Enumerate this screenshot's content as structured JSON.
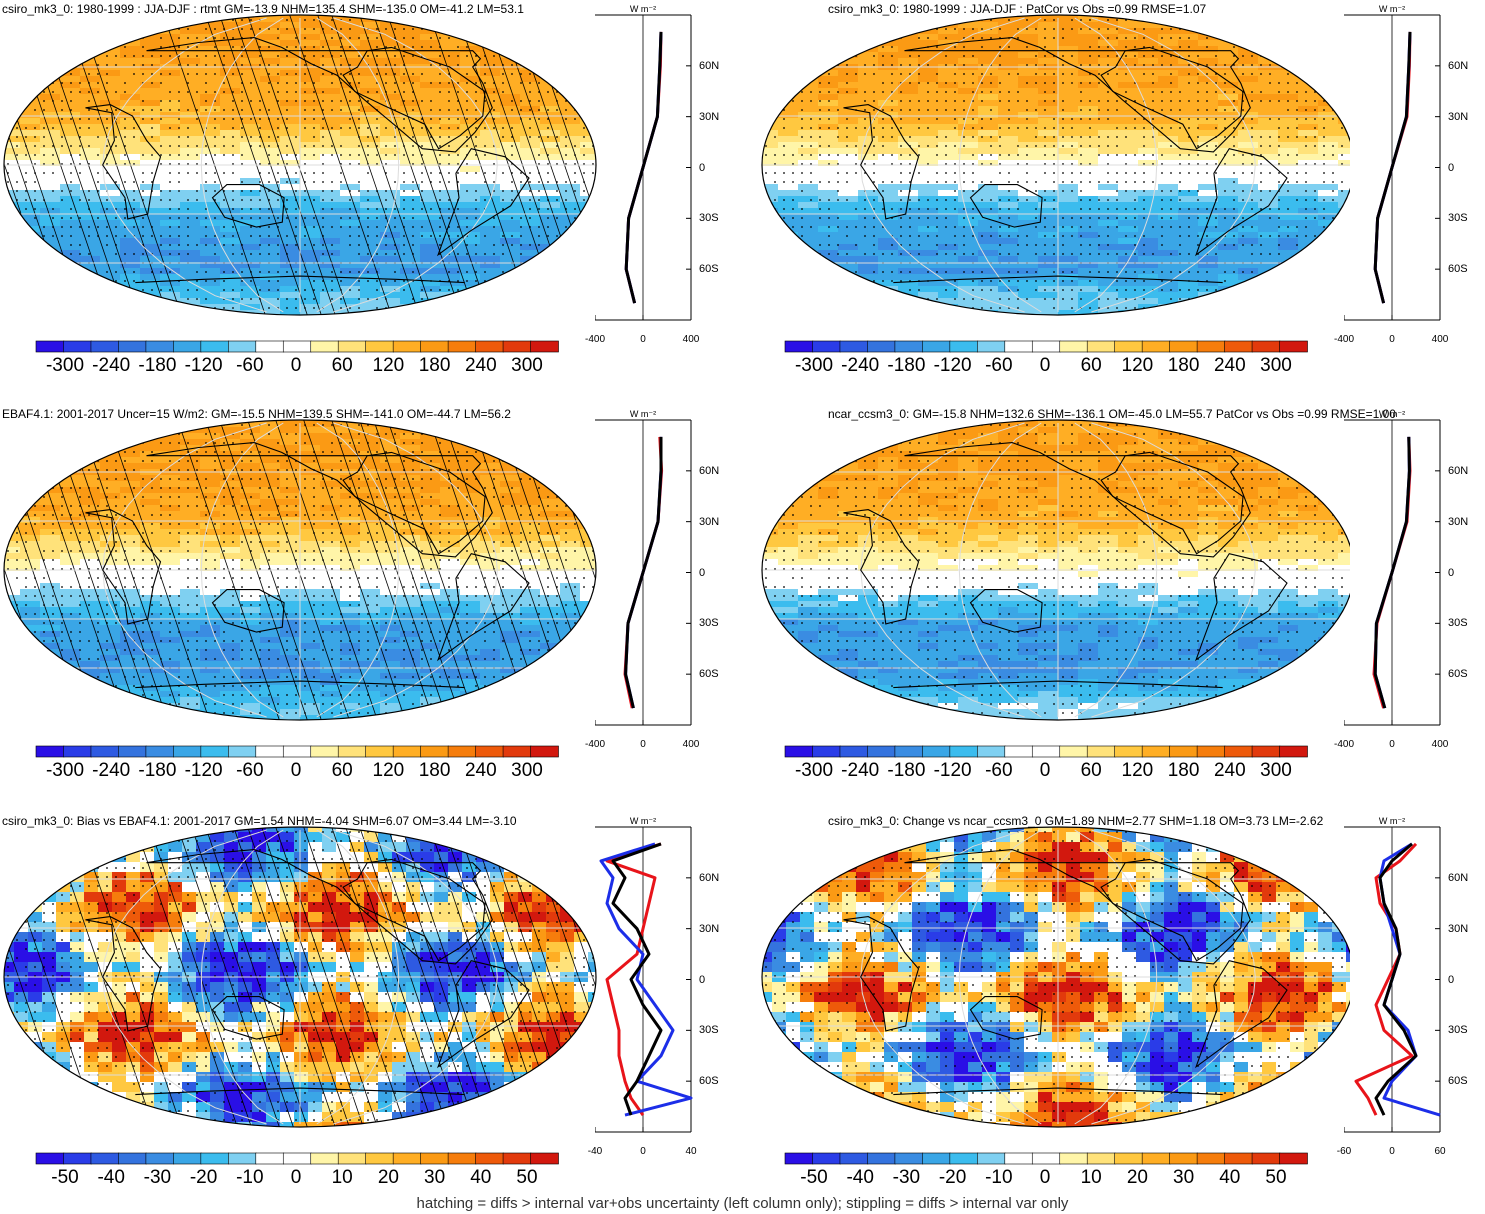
{
  "footnote": "hatching = diffs > internal var+obs uncertainty (left column only); stippling = diffs > internal var only",
  "colors": {
    "scale": [
      "#2a0fe6",
      "#2a3ce8",
      "#2e5ae2",
      "#3473de",
      "#3a8ce2",
      "#3aa6e6",
      "#3bbcee",
      "#7fd0f1",
      "#ffffff",
      "#ffffff",
      "#fff5a8",
      "#ffe27a",
      "#ffc840",
      "#ffae24",
      "#fb9a14",
      "#f67d0c",
      "#ee5a0a",
      "#e23a0c",
      "#d2180e"
    ],
    "continent": "#000000",
    "grid": "#dcdcdc",
    "profile_obs": "#e8141a",
    "profile_model": "#1c2ee8",
    "profile_main": "#000000"
  },
  "panels": [
    {
      "id": "p1",
      "title": "csiro_mk3_0: 1980-1999 : JJA-DJF : rtmt GM=-13.9 NHM=135.4 SHM=-135.0 OM=-41.2 LM=53.1",
      "field": "mean",
      "hatched": true,
      "colorbar_labels": [
        "-300",
        "-240",
        "-180",
        "-120",
        "-60",
        "0",
        "60",
        "120",
        "180",
        "240",
        "300"
      ],
      "profile_units": "W m⁻²",
      "profile_x_ticks": [
        "-400",
        "0",
        "400"
      ],
      "profile_lat_ticks": [
        "60N",
        "30N",
        "0",
        "30S",
        "60S"
      ]
    },
    {
      "id": "p2",
      "title": "csiro_mk3_0: 1980-1999 : JJA-DJF : PatCor vs Obs =0.99 RMSE=1.07",
      "field": "mean",
      "hatched": false,
      "colorbar_labels": [
        "-300",
        "-240",
        "-180",
        "-120",
        "-60",
        "0",
        "60",
        "120",
        "180",
        "240",
        "300"
      ],
      "profile_units": "W m⁻²",
      "profile_x_ticks": [
        "-400",
        "0",
        "400"
      ],
      "profile_lat_ticks": [
        "60N",
        "30N",
        "0",
        "30S",
        "60S"
      ]
    },
    {
      "id": "p3",
      "title": "EBAF4.1: 2001-2017 Uncer=15 W/m2: GM=-15.5 NHM=139.5 SHM=-141.0 OM=-44.7 LM=56.2",
      "field": "mean",
      "hatched": true,
      "colorbar_labels": [
        "-300",
        "-240",
        "-180",
        "-120",
        "-60",
        "0",
        "60",
        "120",
        "180",
        "240",
        "300"
      ],
      "profile_units": "W m⁻²",
      "profile_x_ticks": [
        "-400",
        "0",
        "400"
      ],
      "profile_lat_ticks": [
        "60N",
        "30N",
        "0",
        "30S",
        "60S"
      ]
    },
    {
      "id": "p4",
      "title": "ncar_ccsm3_0: GM=-15.8 NHM=132.6 SHM=-136.1 OM=-45.0 LM=55.7 PatCor vs Obs =0.99 RMSE=1.00",
      "field": "mean",
      "hatched": false,
      "colorbar_labels": [
        "-300",
        "-240",
        "-180",
        "-120",
        "-60",
        "0",
        "60",
        "120",
        "180",
        "240",
        "300"
      ],
      "profile_units": "W m⁻²",
      "profile_x_ticks": [
        "-400",
        "0",
        "400"
      ],
      "profile_lat_ticks": [
        "60N",
        "30N",
        "0",
        "30S",
        "60S"
      ]
    },
    {
      "id": "p5",
      "title": "csiro_mk3_0: Bias vs EBAF4.1: 2001-2017 GM=1.54 NHM=-4.04 SHM=6.07 OM=3.44 LM=-3.10",
      "field": "bias",
      "hatched": true,
      "colorbar_labels": [
        "-50",
        "-40",
        "-30",
        "-20",
        "-10",
        "0",
        "10",
        "20",
        "30",
        "40",
        "50"
      ],
      "profile_units": "W m⁻²",
      "profile_x_ticks": [
        "-40",
        "0",
        "40"
      ],
      "profile_lat_ticks": [
        "60N",
        "30N",
        "0",
        "30S",
        "60S"
      ]
    },
    {
      "id": "p6",
      "title": "csiro_mk3_0: Change vs ncar_ccsm3_0 GM=1.89 NHM=2.77 SHM=1.18 OM=3.73 LM=-2.62",
      "field": "bias",
      "hatched": false,
      "colorbar_labels": [
        "-50",
        "-40",
        "-30",
        "-20",
        "-10",
        "0",
        "10",
        "20",
        "30",
        "40",
        "50"
      ],
      "profile_units": "W m⁻²",
      "profile_x_ticks": [
        "-60",
        "0",
        "60"
      ],
      "profile_lat_ticks": [
        "60N",
        "30N",
        "0",
        "30S",
        "60S"
      ]
    }
  ],
  "chart_data": [
    {
      "type": "heatmap",
      "title": "csiro_mk3_0: 1980-1999 : JJA-DJF : rtmt GM=-13.9 NHM=135.4 SHM=-135.0 OM=-41.2 LM=53.1",
      "colorbar_range": [
        -300,
        300
      ],
      "zonal_profile": {
        "lat": [
          80,
          60,
          30,
          0,
          -30,
          -60,
          -80
        ],
        "model": [
          150,
          140,
          120,
          0,
          -120,
          -140,
          -70
        ],
        "obs": [
          150,
          145,
          120,
          0,
          -120,
          -140,
          -70
        ],
        "main": [
          150,
          140,
          120,
          0,
          -120,
          -140,
          -70
        ],
        "xlim": [
          -400,
          400
        ]
      }
    },
    {
      "type": "heatmap",
      "title": "csiro_mk3_0: 1980-1999 : JJA-DJF : PatCor vs Obs =0.99 RMSE=1.07",
      "colorbar_range": [
        -300,
        300
      ],
      "zonal_profile": {
        "lat": [
          80,
          60,
          30,
          0,
          -30,
          -60,
          -80
        ],
        "model": [
          150,
          140,
          120,
          0,
          -120,
          -140,
          -70
        ],
        "obs": [
          150,
          145,
          125,
          0,
          -120,
          -140,
          -70
        ],
        "main": [
          150,
          140,
          120,
          0,
          -120,
          -140,
          -70
        ],
        "xlim": [
          -400,
          400
        ]
      }
    },
    {
      "type": "heatmap",
      "title": "EBAF4.1: 2001-2017 Uncer=15 W/m2: GM=-15.5 NHM=139.5 SHM=-141.0 OM=-44.7 LM=56.2",
      "colorbar_range": [
        -300,
        300
      ],
      "zonal_profile": {
        "lat": [
          80,
          60,
          30,
          0,
          -30,
          -60,
          -80
        ],
        "model": [
          150,
          150,
          125,
          0,
          -125,
          -145,
          -80
        ],
        "obs": [
          140,
          155,
          125,
          0,
          -125,
          -150,
          -90
        ],
        "main": [
          150,
          150,
          125,
          0,
          -125,
          -145,
          -80
        ],
        "xlim": [
          -400,
          400
        ]
      }
    },
    {
      "type": "heatmap",
      "title": "ncar_ccsm3_0: GM=-15.8 NHM=132.6 SHM=-136.1 OM=-45.0 LM=55.7 PatCor vs Obs =0.99 RMSE=1.00",
      "colorbar_range": [
        -300,
        300
      ],
      "zonal_profile": {
        "lat": [
          80,
          60,
          30,
          0,
          -30,
          -60,
          -80
        ],
        "model": [
          140,
          145,
          120,
          0,
          -130,
          -140,
          -60
        ],
        "obs": [
          140,
          150,
          125,
          0,
          -125,
          -150,
          -70
        ],
        "main": [
          140,
          145,
          120,
          0,
          -130,
          -140,
          -60
        ],
        "xlim": [
          -400,
          400
        ]
      }
    },
    {
      "type": "heatmap",
      "title": "csiro_mk3_0: Bias vs EBAF4.1: 2001-2017 GM=1.54 NHM=-4.04 SHM=6.07 OM=3.44 LM=-3.10",
      "colorbar_range": [
        -50,
        50
      ],
      "zonal_profile": {
        "lat": [
          80,
          70,
          60,
          45,
          30,
          15,
          0,
          -15,
          -30,
          -45,
          -60,
          -70,
          -80
        ],
        "model": [
          10,
          -35,
          -25,
          -30,
          -20,
          0,
          -5,
          10,
          25,
          15,
          -5,
          40,
          -15
        ],
        "obs": [
          15,
          -30,
          10,
          5,
          0,
          -5,
          -30,
          -25,
          -20,
          -20,
          -15,
          -10,
          0
        ],
        "main": [
          15,
          -25,
          -15,
          -25,
          -5,
          5,
          -10,
          0,
          15,
          5,
          -5,
          -15,
          -10
        ],
        "xlim": [
          -40,
          40
        ]
      }
    },
    {
      "type": "heatmap",
      "title": "csiro_mk3_0: Change vs ncar_ccsm3_0 GM=1.89 NHM=2.77 SHM=1.18 OM=3.73 LM=-2.62",
      "colorbar_range": [
        -50,
        50
      ],
      "zonal_profile": {
        "lat": [
          80,
          70,
          60,
          45,
          30,
          15,
          0,
          -15,
          -30,
          -45,
          -60,
          -70,
          -80
        ],
        "model": [
          25,
          -10,
          -15,
          -10,
          0,
          10,
          0,
          -10,
          20,
          30,
          0,
          -10,
          60
        ],
        "obs": [
          30,
          10,
          -20,
          -15,
          5,
          10,
          -5,
          -20,
          -10,
          25,
          -45,
          -30,
          -20
        ],
        "main": [
          25,
          0,
          -15,
          -10,
          5,
          10,
          0,
          -10,
          15,
          30,
          -5,
          -20,
          -10
        ],
        "xlim": [
          -60,
          60
        ]
      }
    }
  ]
}
